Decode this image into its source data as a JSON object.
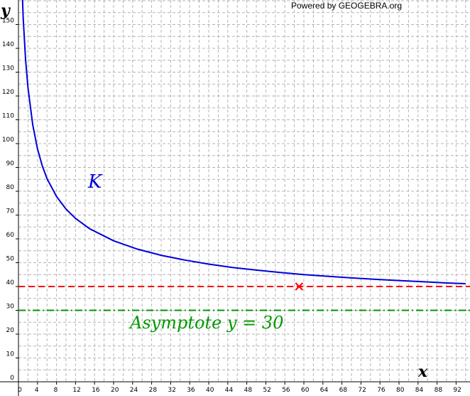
{
  "credit": "Powered by GEOGEBRA.org",
  "colors": {
    "curve": "#0000dd",
    "marker_line": "#ff0000",
    "asymptote": "#009900",
    "grid": "#b4b4b4",
    "axis": "#000000"
  },
  "chart_data": {
    "type": "line",
    "title": "",
    "xlabel": "x",
    "ylabel": "y",
    "xlim": [
      -1.5,
      94
    ],
    "ylim": [
      -4,
      156
    ],
    "x_ticks": [
      0,
      4,
      8,
      12,
      16,
      20,
      24,
      28,
      32,
      36,
      40,
      44,
      48,
      52,
      56,
      60,
      64,
      68,
      72,
      76,
      80,
      84,
      88,
      92
    ],
    "y_ticks": [
      0,
      10,
      20,
      30,
      40,
      50,
      60,
      70,
      80,
      90,
      100,
      110,
      120,
      130,
      140,
      150
    ],
    "grid": true,
    "series": [
      {
        "name": "K",
        "style": "solid",
        "x": [
          0.5,
          1,
          1.5,
          2,
          3,
          4,
          5,
          6,
          8,
          10,
          12,
          15,
          20,
          25,
          30,
          35,
          40,
          45,
          50,
          55,
          60,
          65,
          70,
          75,
          80,
          85,
          90,
          94
        ],
        "y": [
          179.4,
          152.5,
          135.4,
          123.5,
          107.9,
          97.8,
          90.7,
          85.3,
          77.8,
          72.5,
          68.6,
          64.2,
          59.2,
          55.7,
          53.1,
          51.1,
          49.4,
          48.0,
          46.9,
          45.9,
          45.0,
          44.3,
          43.6,
          43.0,
          42.5,
          42.0,
          41.5,
          41.2
        ]
      }
    ],
    "reference_lines": [
      {
        "orientation": "horizontal",
        "y": 40,
        "style": "dashed",
        "label": ""
      },
      {
        "orientation": "horizontal",
        "y": 30,
        "style": "dash-dot",
        "label": "Asymptote y = 30"
      }
    ],
    "points": [
      {
        "x": 59,
        "y": 40,
        "marker": "x",
        "label": ""
      }
    ],
    "annotations": [
      "K",
      "Asymptote y = 30"
    ]
  }
}
